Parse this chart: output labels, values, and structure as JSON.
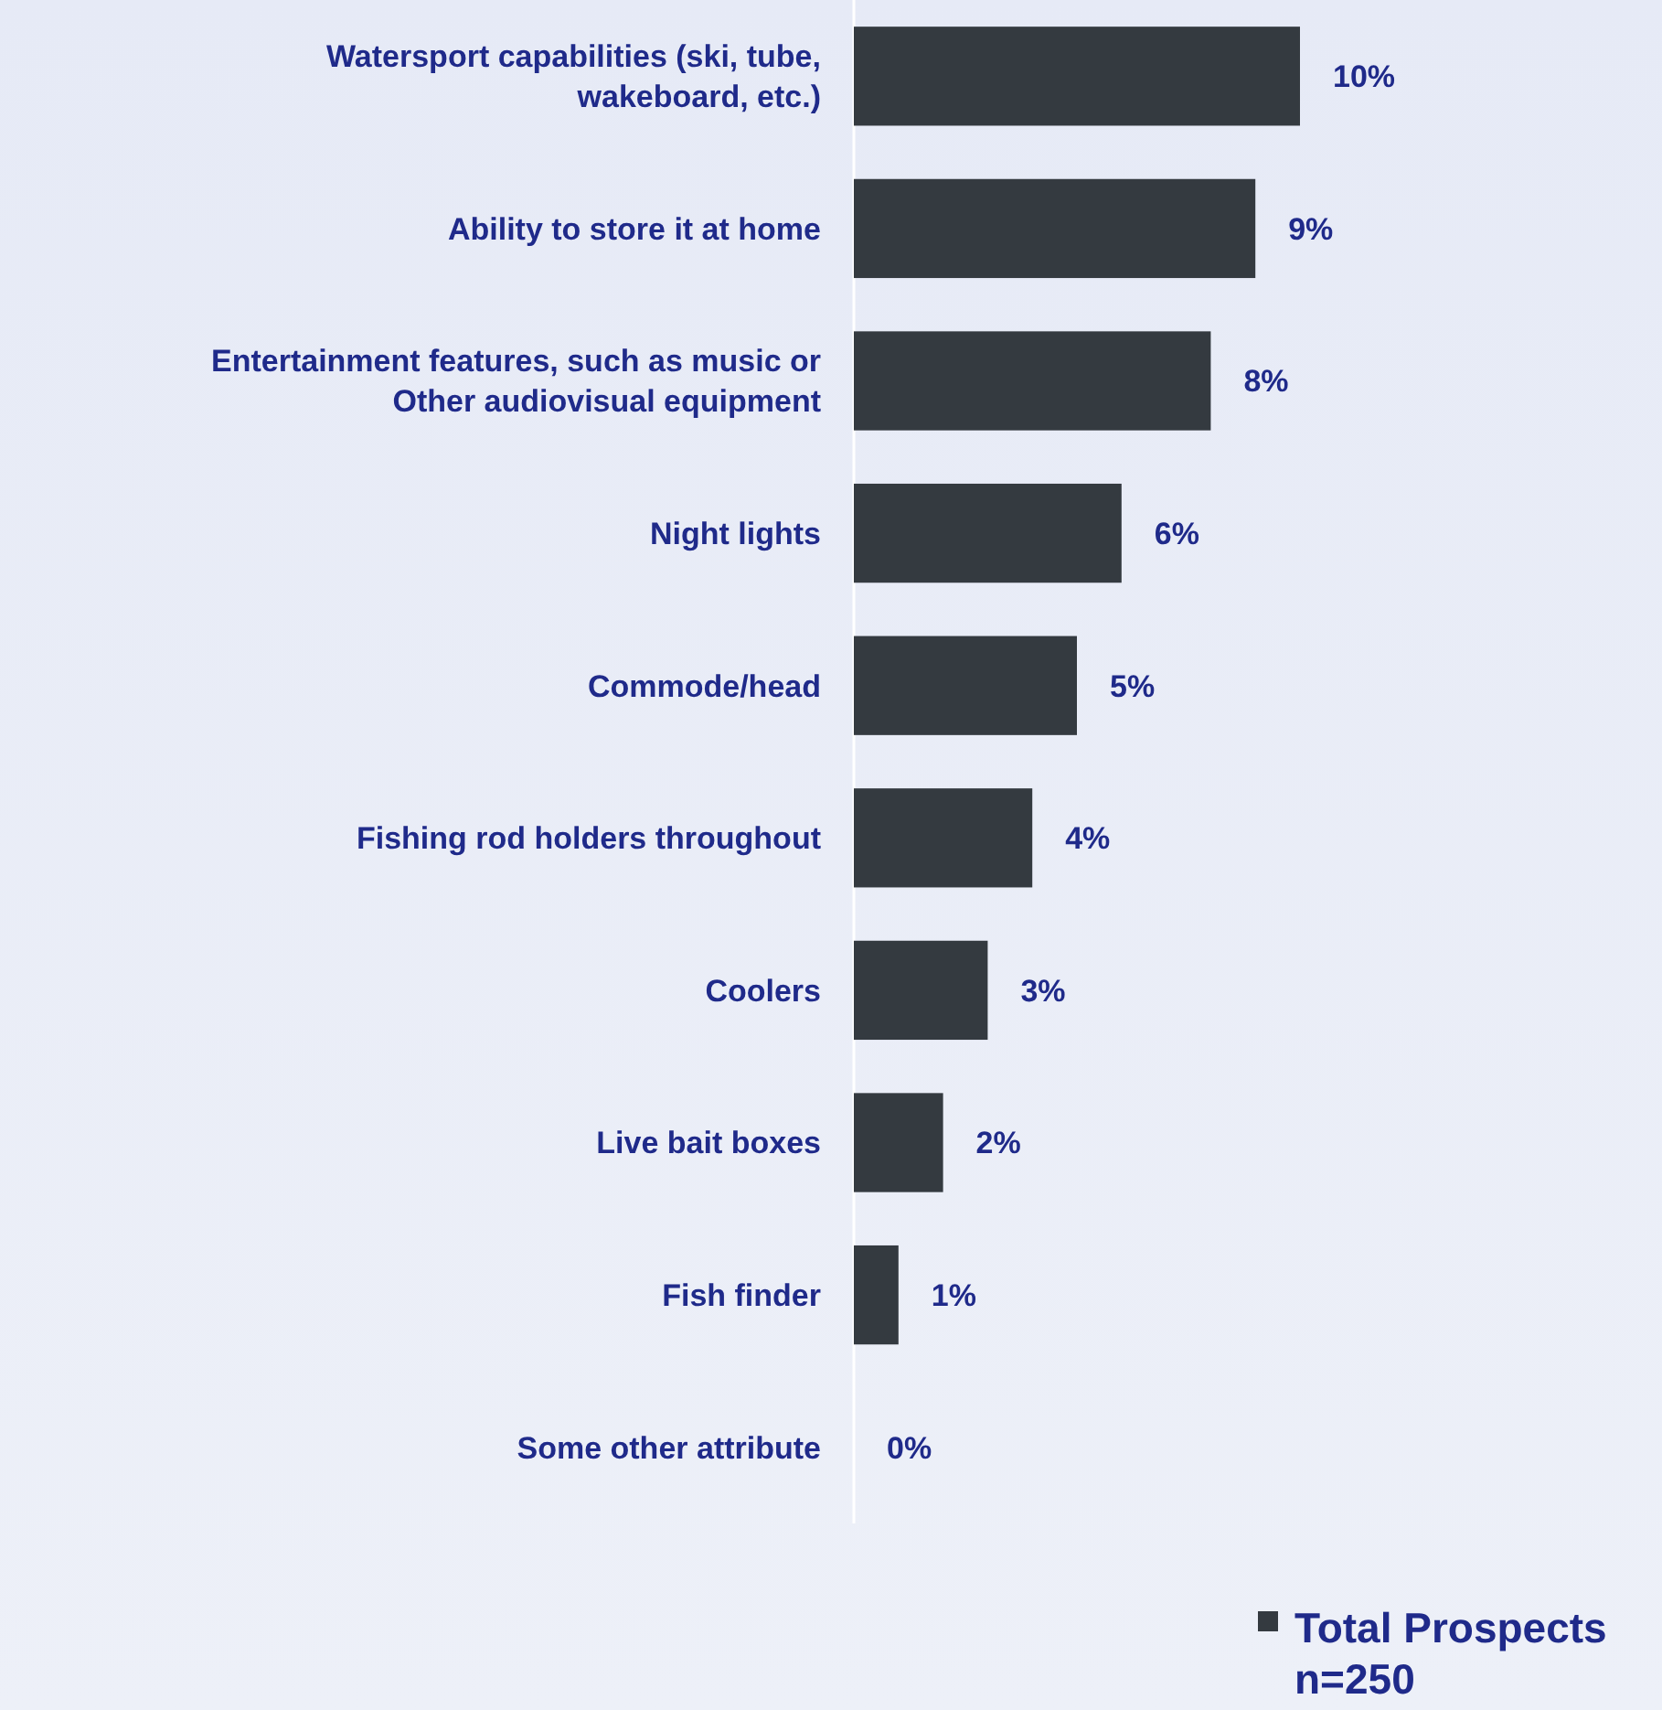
{
  "chart_data": {
    "type": "bar",
    "orientation": "horizontal",
    "categories": [
      "Watersport capabilities (ski, tube,\nwakeboard, etc.)",
      "Ability to store it at home",
      "Entertainment features, such as music or\nOther audiovisual equipment",
      "Night lights",
      "Commode/head",
      "Fishing rod holders throughout",
      "Coolers",
      "Live bait boxes",
      "Fish finder",
      "Some other attribute"
    ],
    "series": [
      {
        "name": "Total Prospects\nn=250",
        "color": "#343a40",
        "values": [
          10,
          9,
          8,
          6,
          5,
          4,
          3,
          2,
          1,
          0
        ],
        "value_labels": [
          "10%",
          "9%",
          "8%",
          "6%",
          "5%",
          "4%",
          "3%",
          "2%",
          "1%",
          "0%"
        ]
      }
    ],
    "legend": "bottom right",
    "tick_labels": "y"
  }
}
